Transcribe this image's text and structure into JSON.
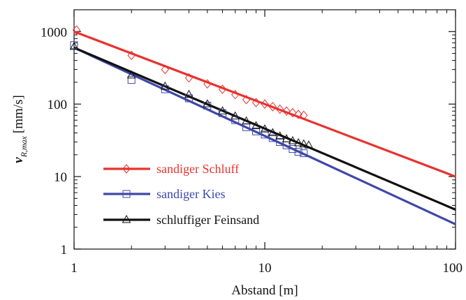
{
  "chart_data": {
    "type": "scatter",
    "xscale": "log",
    "yscale": "log",
    "xlim": [
      1,
      100
    ],
    "ylim": [
      1,
      2000
    ],
    "x_ticks": [
      1,
      10,
      100
    ],
    "x_tick_labels": [
      "1",
      "10",
      "100"
    ],
    "y_ticks": [
      1,
      10,
      100,
      1000
    ],
    "y_tick_labels": [
      "1",
      "10",
      "100",
      "1000"
    ],
    "xlabel": "Abstand [m]",
    "ylabel_main": "v",
    "ylabel_sub": "R,max",
    "ylabel_unit": "[mm/s]",
    "grid": false,
    "legend_position": "lower-left",
    "series": [
      {
        "name": "sandiger Schluff",
        "color": "#e8322e",
        "marker": "diamond",
        "points": [
          [
            1.03,
            1050
          ],
          [
            2,
            470
          ],
          [
            3,
            300
          ],
          [
            4,
            230
          ],
          [
            5,
            190
          ],
          [
            6,
            160
          ],
          [
            7,
            135
          ],
          [
            8,
            115
          ],
          [
            9,
            105
          ],
          [
            10,
            100
          ],
          [
            11,
            92
          ],
          [
            12,
            85
          ],
          [
            13,
            80
          ],
          [
            14,
            76
          ],
          [
            15,
            72
          ],
          [
            16,
            70
          ]
        ],
        "fit": {
          "x": [
            1,
            100
          ],
          "y": [
            1000,
            10
          ]
        }
      },
      {
        "name": "sandiger Kies",
        "color": "#3f48a8",
        "marker": "square",
        "points": [
          [
            1.0,
            650
          ],
          [
            2,
            215
          ],
          [
            3,
            160
          ],
          [
            4,
            120
          ],
          [
            5,
            95
          ],
          [
            6,
            75
          ],
          [
            7,
            60
          ],
          [
            8,
            48
          ],
          [
            9,
            42
          ],
          [
            10,
            38
          ],
          [
            11,
            34
          ],
          [
            12,
            30
          ],
          [
            13,
            27
          ],
          [
            14,
            24
          ],
          [
            15,
            22
          ],
          [
            16,
            21
          ]
        ],
        "fit": {
          "x": [
            1,
            100
          ],
          "y": [
            600,
            2.2
          ]
        }
      },
      {
        "name": "schluffiger Feinsand",
        "color": "#111111",
        "marker": "triangle",
        "points": [
          [
            1.0,
            620
          ],
          [
            2,
            250
          ],
          [
            3,
            175
          ],
          [
            4,
            135
          ],
          [
            5,
            100
          ],
          [
            6,
            80
          ],
          [
            7,
            68
          ],
          [
            8,
            58
          ],
          [
            9,
            50
          ],
          [
            10,
            45
          ],
          [
            11,
            40
          ],
          [
            12,
            36
          ],
          [
            13,
            33
          ],
          [
            14,
            31
          ],
          [
            15,
            29
          ],
          [
            16,
            28
          ],
          [
            17,
            27
          ]
        ],
        "fit": {
          "x": [
            1,
            100
          ],
          "y": [
            600,
            3.5
          ]
        }
      }
    ]
  }
}
